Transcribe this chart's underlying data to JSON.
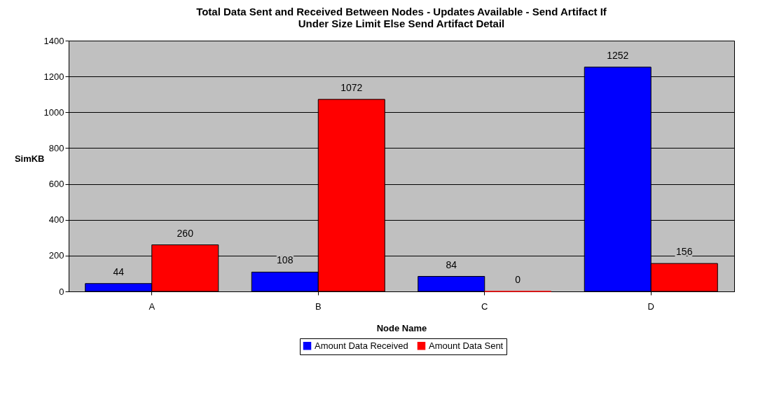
{
  "chart_data": {
    "type": "bar",
    "title": "Total Data Sent and Received Between Nodes  - Updates Available - Send Artifact If\nUnder Size Limit Else Send Artifact Detail",
    "xlabel": "Node Name",
    "ylabel": "SimKB",
    "categories": [
      "A",
      "B",
      "C",
      "D"
    ],
    "series": [
      {
        "name": "Amount Data Received",
        "color": "#0000ff",
        "values": [
          44,
          108,
          84,
          1252
        ]
      },
      {
        "name": "Amount Data Sent",
        "color": "#ff0000",
        "values": [
          260,
          1072,
          0,
          156
        ]
      }
    ],
    "ylim": [
      0,
      1400
    ],
    "yticks": [
      0,
      200,
      400,
      600,
      800,
      1000,
      1200,
      1400
    ],
    "grid": "y",
    "legend": "bottom",
    "data_labels": true
  }
}
